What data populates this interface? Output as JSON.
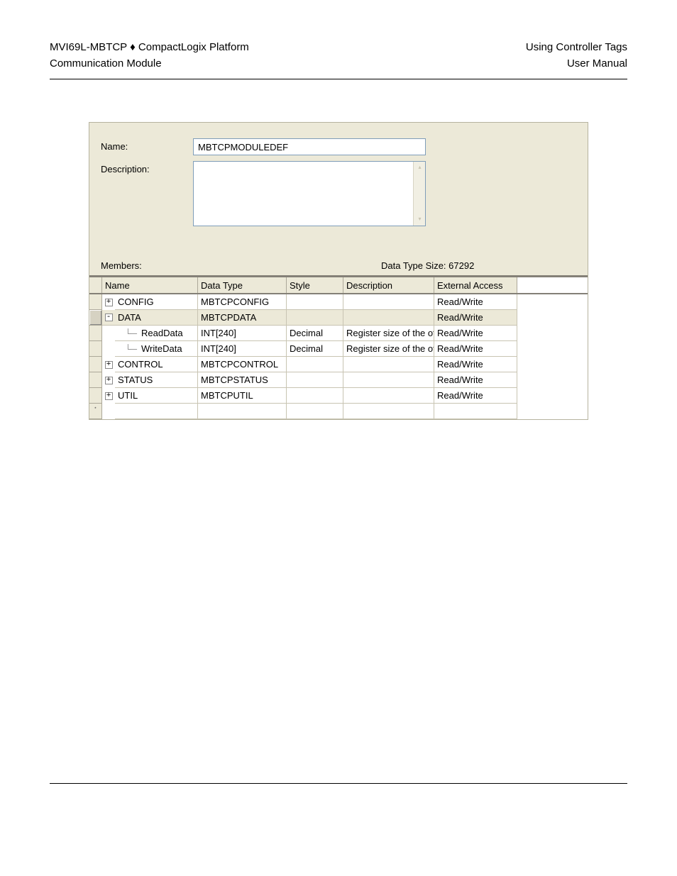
{
  "header": {
    "left_line1": "MVI69L-MBTCP ♦ CompactLogix Platform",
    "left_line2": "Communication Module",
    "right_line1": "Using Controller Tags",
    "right_line2": "User Manual"
  },
  "form": {
    "name_label": "Name:",
    "name_value": "MBTCPMODULEDEF",
    "description_label": "Description:",
    "description_value": ""
  },
  "members": {
    "label": "Members:",
    "size_label": "Data Type Size: 67292"
  },
  "grid": {
    "headers": {
      "name": "Name",
      "data_type": "Data Type",
      "style": "Style",
      "description": "Description",
      "external_access": "External Access"
    },
    "rows": [
      {
        "indent": 0,
        "expander": "+",
        "name": "CONFIG",
        "data_type": "MBTCPCONFIG",
        "style": "",
        "description": "",
        "external": "Read/Write",
        "selected": false
      },
      {
        "indent": 0,
        "expander": "-",
        "name": "DATA",
        "data_type": "MBTCPDATA",
        "style": "",
        "description": "",
        "external": "Read/Write",
        "selected": true
      },
      {
        "indent": 1,
        "expander": "",
        "name": "ReadData",
        "data_type": "INT[240]",
        "style": "Decimal",
        "description": "Register size of the of t",
        "external": "Read/Write",
        "selected": false
      },
      {
        "indent": 1,
        "expander": "",
        "name": "WriteData",
        "data_type": "INT[240]",
        "style": "Decimal",
        "description": "Register size of the of t",
        "external": "Read/Write",
        "selected": false
      },
      {
        "indent": 0,
        "expander": "+",
        "name": "CONTROL",
        "data_type": "MBTCPCONTROL",
        "style": "",
        "description": "",
        "external": "Read/Write",
        "selected": false
      },
      {
        "indent": 0,
        "expander": "+",
        "name": "STATUS",
        "data_type": "MBTCPSTATUS",
        "style": "",
        "description": "",
        "external": "Read/Write",
        "selected": false
      },
      {
        "indent": 0,
        "expander": "+",
        "name": "UTIL",
        "data_type": "MBTCPUTIL",
        "style": "",
        "description": "",
        "external": "Read/Write",
        "selected": false
      }
    ],
    "insert_glyph": "⋆"
  }
}
